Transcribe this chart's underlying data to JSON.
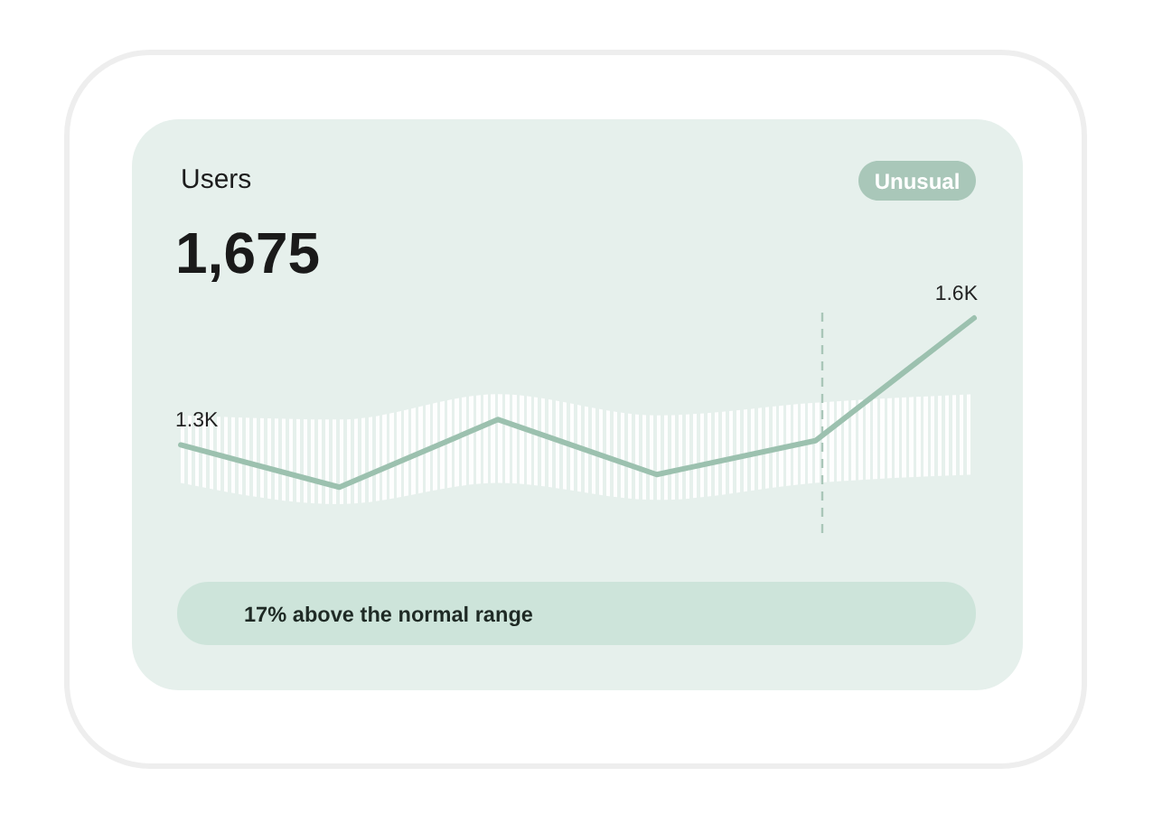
{
  "chart_data": {
    "type": "line",
    "title": "Users",
    "subtitle": "1,675",
    "annotations": [
      "Unusual",
      "17% above the normal range"
    ],
    "categories": [
      null,
      null,
      null,
      null,
      null,
      null
    ],
    "series": [
      {
        "color": "#9cc1af",
        "values": [
          1300,
          1200,
          1360,
          1230,
          1310,
          1600
        ],
        "lower": [
          1210,
          1160,
          1210,
          1170,
          1210,
          1230
        ],
        "upper": [
          1370,
          1360,
          1420,
          1370,
          1400,
          1420
        ],
        "value_labels": [
          "1.3K",
          null,
          null,
          null,
          null,
          "1.6K"
        ]
      }
    ],
    "tick_labels": false,
    "line_style": "solid"
  }
}
